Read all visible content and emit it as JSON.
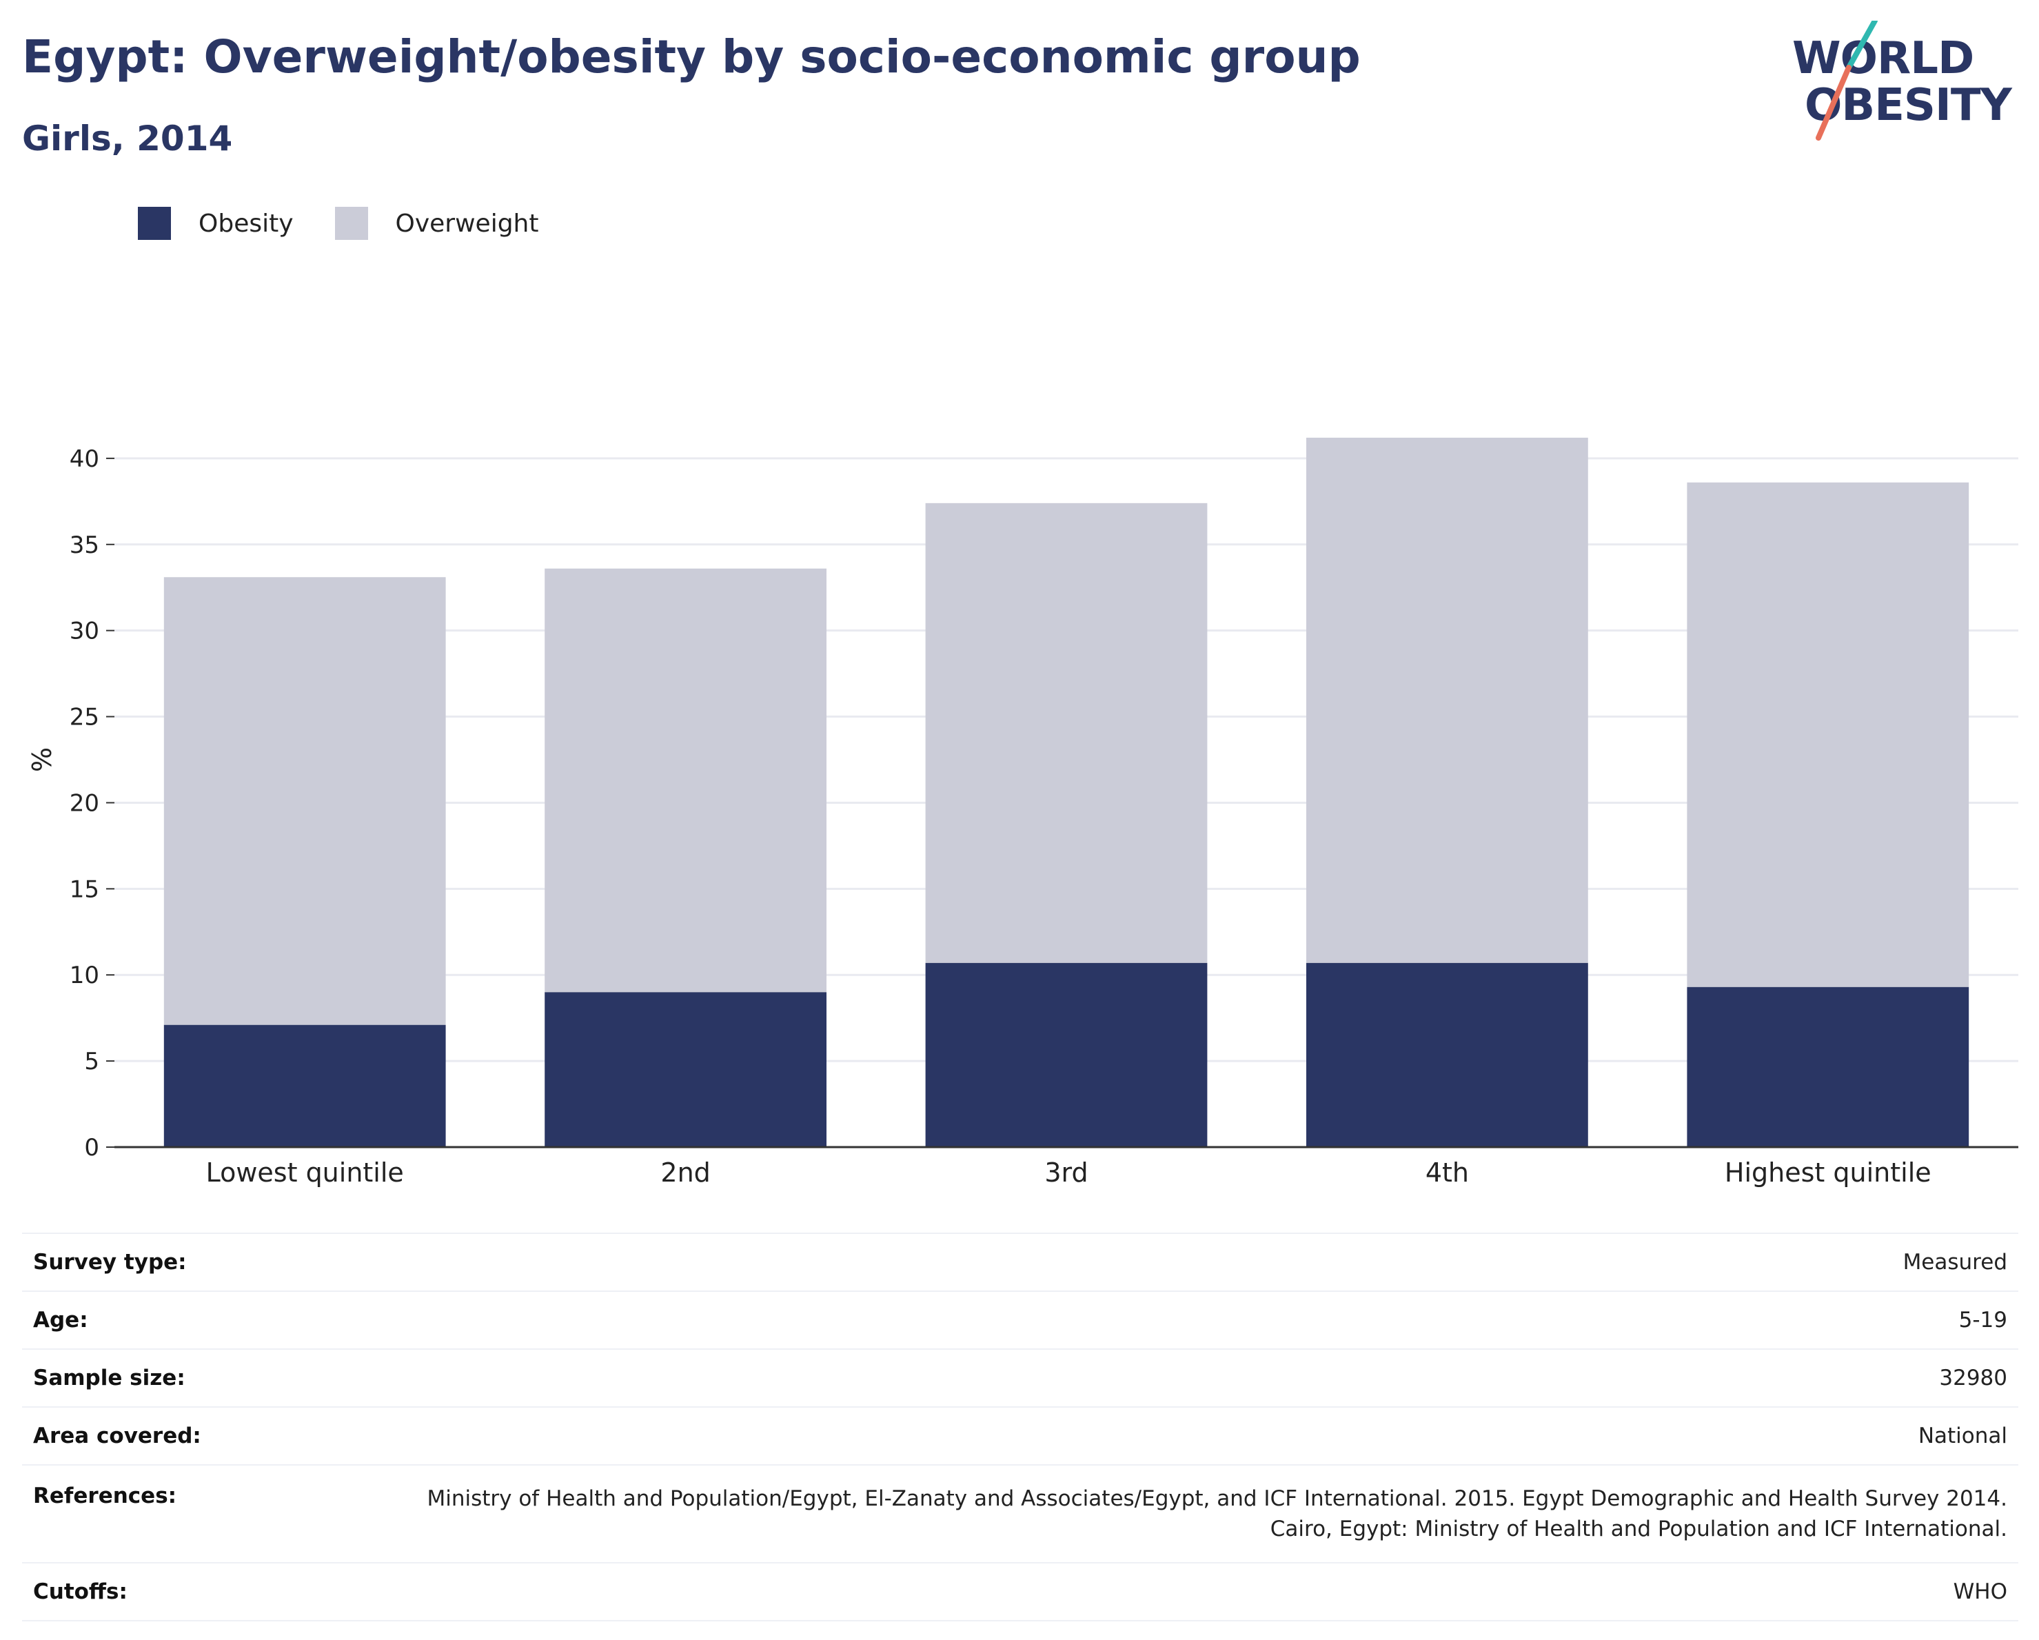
{
  "header": {
    "title": "Egypt: Overweight/obesity by socio-economic group",
    "subtitle": "Girls, 2014"
  },
  "logo": {
    "line1": "WORLD",
    "line2": "OBESITY",
    "accent_teal": "#2fb8b0",
    "accent_coral": "#e8705a"
  },
  "colors": {
    "obesity": "#2a3664",
    "overweight": "#cbccd8",
    "title": "#2a3664"
  },
  "chart_data": {
    "type": "bar",
    "stacked": true,
    "categories": [
      "Lowest quintile",
      "2nd",
      "3rd",
      "4th",
      "Highest quintile"
    ],
    "series": [
      {
        "name": "Obesity",
        "values": [
          7.1,
          9.0,
          10.7,
          10.7,
          9.3
        ]
      },
      {
        "name": "Overweight",
        "values": [
          26.0,
          24.6,
          26.7,
          30.5,
          29.3
        ]
      }
    ],
    "ylabel": "%",
    "ylim": [
      0,
      45
    ],
    "yticks": [
      0,
      5,
      10,
      15,
      20,
      25,
      30,
      35,
      40
    ],
    "grid": true,
    "legend_position": "top-left"
  },
  "meta": [
    {
      "label": "Survey type:",
      "value": "Measured"
    },
    {
      "label": "Age:",
      "value": "5-19"
    },
    {
      "label": "Sample size:",
      "value": "32980"
    },
    {
      "label": "Area covered:",
      "value": "National"
    },
    {
      "label": "References:",
      "value": "Ministry of Health and Population/Egypt, El-Zanaty and Associates/Egypt, and ICF International. 2015. Egypt Demographic and Health Survey 2014. Cairo, Egypt: Ministry of Health and Population and ICF International."
    },
    {
      "label": "Cutoffs:",
      "value": "WHO"
    }
  ]
}
